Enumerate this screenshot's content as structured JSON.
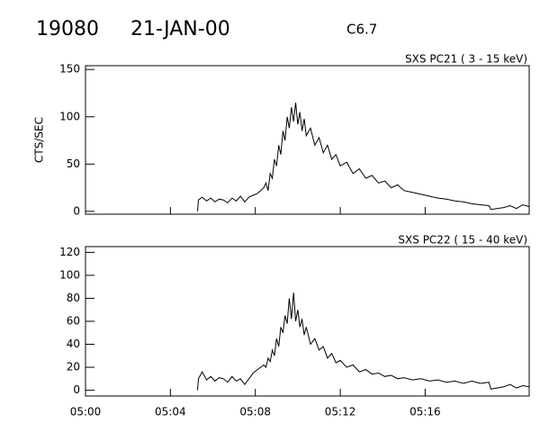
{
  "header": {
    "id": "19080",
    "date": "21-JAN-00",
    "class": "C6.7"
  },
  "chart_data": [
    {
      "type": "line",
      "title": "SXS PC21  (  3 - 15 keV)",
      "ylabel": "CTS/SEC",
      "color": "#000000",
      "x": [
        5.28,
        5.32,
        5.5,
        5.7,
        5.9,
        6.1,
        6.3,
        6.5,
        6.7,
        6.9,
        7.1,
        7.3,
        7.5,
        7.7,
        7.9,
        8.1,
        8.4,
        8.5,
        8.6,
        8.7,
        8.8,
        8.9,
        9.0,
        9.1,
        9.2,
        9.3,
        9.4,
        9.5,
        9.6,
        9.7,
        9.8,
        9.9,
        10.0,
        10.1,
        10.2,
        10.3,
        10.4,
        10.6,
        10.8,
        11.0,
        11.2,
        11.4,
        11.6,
        11.8,
        12.0,
        12.3,
        12.6,
        12.9,
        13.2,
        13.5,
        13.8,
        14.1,
        14.4,
        14.7,
        15.0,
        15.4,
        15.8,
        16.2,
        16.6,
        17.0,
        17.4,
        17.8,
        18.2,
        18.6,
        19.0,
        19.1,
        19.7,
        20.0,
        20.3,
        20.6,
        20.9
      ],
      "values": [
        0,
        12,
        15,
        11,
        14,
        10,
        13,
        12,
        9,
        14,
        11,
        16,
        10,
        15,
        17,
        19,
        25,
        30,
        22,
        40,
        35,
        55,
        48,
        70,
        60,
        85,
        75,
        100,
        88,
        110,
        95,
        115,
        92,
        105,
        85,
        98,
        80,
        88,
        70,
        78,
        62,
        70,
        55,
        60,
        48,
        52,
        40,
        45,
        35,
        38,
        30,
        32,
        25,
        28,
        22,
        20,
        18,
        16,
        14,
        13,
        11,
        10,
        8,
        7,
        6,
        2,
        4,
        6,
        3,
        7,
        5
      ],
      "xlim": [
        0,
        20.9
      ],
      "xticks": [
        0,
        4,
        8,
        12,
        16
      ],
      "ylim": [
        -3,
        154
      ],
      "yticks": [
        0,
        50,
        100,
        150
      ]
    },
    {
      "type": "line",
      "title": "SXS PC22  ( 15 - 40 keV)",
      "color": "#000000",
      "x": [
        5.28,
        5.32,
        5.5,
        5.7,
        5.9,
        6.1,
        6.3,
        6.5,
        6.7,
        6.9,
        7.1,
        7.3,
        7.5,
        7.7,
        7.9,
        8.1,
        8.4,
        8.5,
        8.6,
        8.7,
        8.8,
        8.9,
        9.0,
        9.1,
        9.2,
        9.3,
        9.4,
        9.5,
        9.6,
        9.7,
        9.8,
        9.9,
        10.0,
        10.1,
        10.2,
        10.3,
        10.4,
        10.6,
        10.8,
        11.0,
        11.2,
        11.4,
        11.6,
        11.8,
        12.0,
        12.3,
        12.6,
        12.9,
        13.2,
        13.5,
        13.8,
        14.1,
        14.4,
        14.7,
        15.0,
        15.4,
        15.8,
        16.2,
        16.6,
        17.0,
        17.4,
        17.8,
        18.2,
        18.6,
        19.0,
        19.1,
        19.7,
        20.0,
        20.3,
        20.6,
        20.9
      ],
      "values": [
        0,
        10,
        16,
        9,
        12,
        8,
        11,
        10,
        7,
        12,
        8,
        10,
        5,
        10,
        15,
        18,
        22,
        20,
        28,
        25,
        35,
        30,
        45,
        38,
        55,
        50,
        65,
        58,
        80,
        62,
        85,
        60,
        70,
        55,
        62,
        48,
        55,
        40,
        45,
        35,
        38,
        28,
        32,
        24,
        26,
        20,
        22,
        16,
        18,
        14,
        15,
        12,
        13,
        10,
        11,
        9,
        10,
        8,
        9,
        7,
        8,
        6,
        8,
        6,
        7,
        1,
        3,
        5,
        2,
        4,
        3
      ],
      "xlim": [
        0,
        20.9
      ],
      "xticks": [
        {
          "value": 0,
          "label": "05:00"
        },
        {
          "value": 4,
          "label": "05:04"
        },
        {
          "value": 8,
          "label": "05:08"
        },
        {
          "value": 12,
          "label": "05:12"
        },
        {
          "value": 16,
          "label": "05:16"
        }
      ],
      "ylim": [
        -5,
        125
      ],
      "yticks": [
        0,
        20,
        40,
        60,
        80,
        100,
        120
      ]
    }
  ]
}
